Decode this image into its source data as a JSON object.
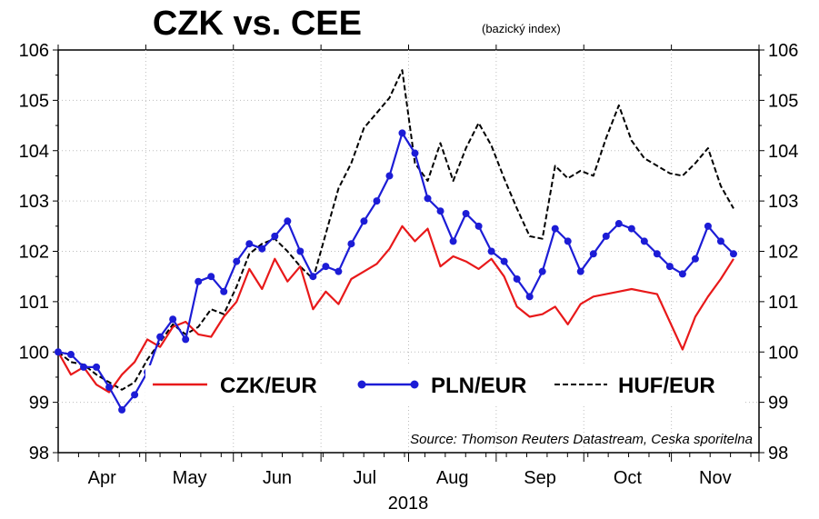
{
  "chart_data": {
    "type": "line",
    "title": "CZK vs. CEE",
    "subtitle": "(bazický index)",
    "xlabel": "2018",
    "x_ticks": [
      "Apr",
      "May",
      "Jun",
      "Jul",
      "Aug",
      "Sep",
      "Oct",
      "Nov"
    ],
    "xlim": [
      0,
      165
    ],
    "ylim": [
      98,
      106
    ],
    "y_ticks": [
      98,
      99,
      100,
      101,
      102,
      103,
      104,
      105,
      106
    ],
    "grid": true,
    "legend_placement": "lower-center",
    "source": "Source: Thomson Reuters Datastream, Ceska sporitelna",
    "series": [
      {
        "name": "CZK/EUR",
        "color": "#e8191a",
        "style": "solid",
        "x": [
          0,
          3,
          6,
          9,
          12,
          15,
          18,
          21,
          24,
          27,
          30,
          33,
          36,
          39,
          42,
          45,
          48,
          51,
          54,
          57,
          60,
          63,
          66,
          69,
          72,
          75,
          78,
          81,
          84,
          87,
          90,
          93,
          96,
          99,
          102,
          105,
          108,
          111,
          114,
          117,
          120,
          123,
          126,
          129,
          132,
          135,
          138,
          141,
          144,
          147,
          150,
          153,
          156,
          159
        ],
        "values": [
          100.0,
          99.55,
          99.7,
          99.35,
          99.2,
          99.55,
          99.8,
          100.25,
          100.1,
          100.5,
          100.6,
          100.35,
          100.3,
          100.7,
          101.0,
          101.65,
          101.25,
          101.85,
          101.4,
          101.7,
          100.85,
          101.2,
          100.95,
          101.45,
          101.6,
          101.75,
          102.05,
          102.5,
          102.2,
          102.45,
          101.7,
          101.9,
          101.8,
          101.65,
          101.85,
          101.5,
          100.9,
          100.7,
          100.75,
          100.9,
          100.55,
          100.95,
          101.1,
          101.15,
          101.2,
          101.25,
          101.2,
          101.15,
          100.6,
          100.05,
          100.7,
          101.1,
          101.45,
          101.85
        ]
      },
      {
        "name": "PLN/EUR",
        "color": "#1c1cd6",
        "style": "solid-markers",
        "x": [
          0,
          3,
          6,
          9,
          12,
          15,
          18,
          21,
          24,
          27,
          30,
          33,
          36,
          39,
          42,
          45,
          48,
          51,
          54,
          57,
          60,
          63,
          66,
          69,
          72,
          75,
          78,
          81,
          84,
          87,
          90,
          93,
          96,
          99,
          102,
          105,
          108,
          111,
          114,
          117,
          120,
          123,
          126,
          129,
          132,
          135,
          138,
          141,
          144,
          147,
          150,
          153,
          156,
          159
        ],
        "values": [
          100.0,
          99.95,
          99.7,
          99.7,
          99.3,
          98.85,
          99.15,
          99.6,
          100.3,
          100.65,
          100.25,
          101.4,
          101.5,
          101.2,
          101.8,
          102.15,
          102.05,
          102.3,
          102.6,
          102.0,
          101.5,
          101.7,
          101.6,
          102.15,
          102.6,
          103.0,
          103.5,
          104.35,
          103.95,
          103.05,
          102.8,
          102.2,
          102.75,
          102.5,
          102.0,
          101.8,
          101.45,
          101.1,
          101.6,
          102.45,
          102.2,
          101.6,
          101.95,
          102.3,
          102.55,
          102.45,
          102.2,
          101.95,
          101.7,
          101.55,
          101.85,
          102.5,
          102.2,
          101.95
        ]
      },
      {
        "name": "HUF/EUR",
        "color": "#000000",
        "style": "dashed",
        "x": [
          0,
          3,
          6,
          9,
          12,
          15,
          18,
          21,
          24,
          27,
          30,
          33,
          36,
          39,
          42,
          45,
          48,
          51,
          54,
          57,
          60,
          63,
          66,
          69,
          72,
          75,
          78,
          81,
          84,
          87,
          90,
          93,
          96,
          99,
          102,
          105,
          108,
          111,
          114,
          117,
          120,
          123,
          126,
          129,
          132,
          135,
          138,
          141,
          144,
          147,
          150,
          153,
          156,
          159
        ],
        "values": [
          100.0,
          99.8,
          99.75,
          99.55,
          99.4,
          99.25,
          99.4,
          99.85,
          100.2,
          100.55,
          100.35,
          100.5,
          100.85,
          100.75,
          101.3,
          101.95,
          102.15,
          102.25,
          102.0,
          101.7,
          101.45,
          102.35,
          103.25,
          103.75,
          104.45,
          104.75,
          105.05,
          105.6,
          103.75,
          103.4,
          104.15,
          103.4,
          104.05,
          104.55,
          104.1,
          103.45,
          102.85,
          102.3,
          102.25,
          103.7,
          103.45,
          103.6,
          103.5,
          104.25,
          104.9,
          104.2,
          103.85,
          103.7,
          103.55,
          103.5,
          103.75,
          104.05,
          103.3,
          102.85
        ]
      }
    ]
  }
}
